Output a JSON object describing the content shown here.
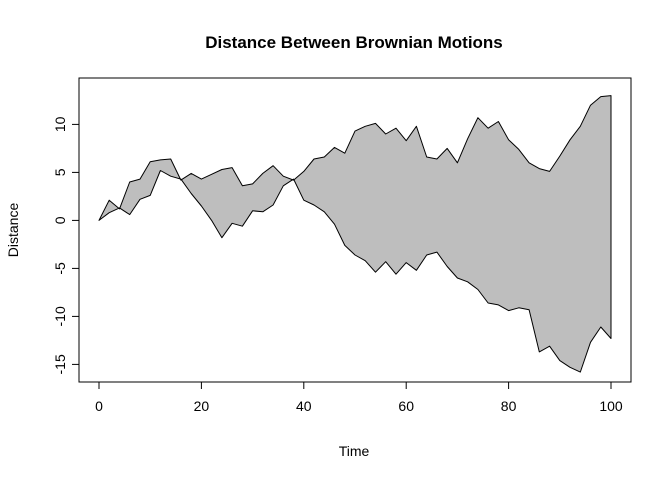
{
  "chart_data": {
    "type": "area",
    "title": "Distance Between Brownian Motions",
    "xlabel": "Time",
    "ylabel": "Distance",
    "xlim": [
      0,
      100
    ],
    "ylim": [
      -16,
      14
    ],
    "x_ticks": [
      "0",
      "20",
      "40",
      "60",
      "80",
      "100"
    ],
    "y_ticks": [
      "-15",
      "-10",
      "-5",
      "0",
      "5",
      "10"
    ],
    "grid": false,
    "fill_color": "#bebebe",
    "line_color": "#000000",
    "series": [
      {
        "x": [
          0,
          2,
          4,
          6,
          8,
          10,
          12,
          14,
          16,
          18,
          20,
          22,
          24,
          26,
          28,
          30,
          32,
          34,
          36,
          38,
          40,
          42,
          44,
          46,
          48,
          50,
          52,
          54,
          56,
          58,
          60,
          62,
          64,
          66,
          68,
          70,
          72,
          74,
          76,
          78,
          80,
          82,
          84,
          86,
          88,
          90,
          92,
          94,
          96,
          98,
          100
        ],
        "values": [
          0,
          2.1,
          1.2,
          4,
          4.3,
          6.1,
          6.3,
          6.4,
          4.2,
          4.9,
          4.3,
          4.8,
          5.3,
          5.5,
          3.6,
          3.8,
          4.9,
          5.7,
          4.6,
          4.2,
          5.1,
          6.4,
          6.6,
          7.6,
          7,
          9.3,
          9.8,
          10.1,
          9,
          9.6,
          8.3,
          9.8,
          6.6,
          6.4,
          7.5,
          6,
          8.5,
          10.7,
          9.6,
          10.3,
          8.4,
          7.4,
          6,
          5.4,
          5.1,
          6.7,
          8.4,
          9.8,
          12,
          12.9,
          13
        ]
      },
      {
        "x": [
          0,
          2,
          4,
          6,
          8,
          10,
          12,
          14,
          16,
          18,
          20,
          22,
          24,
          26,
          28,
          30,
          32,
          34,
          36,
          38,
          40,
          42,
          44,
          46,
          48,
          50,
          52,
          54,
          56,
          58,
          60,
          62,
          64,
          66,
          68,
          70,
          72,
          74,
          76,
          78,
          80,
          82,
          84,
          86,
          88,
          90,
          92,
          94,
          96,
          98,
          100
        ],
        "values": [
          0,
          0.8,
          1.3,
          0.6,
          2.2,
          2.6,
          5.2,
          4.6,
          4.3,
          2.8,
          1.5,
          0,
          -1.8,
          -0.3,
          -0.6,
          1,
          0.9,
          1.6,
          3.6,
          4.3,
          2.1,
          1.6,
          0.9,
          -0.4,
          -2.6,
          -3.6,
          -4.2,
          -5.4,
          -4.3,
          -5.6,
          -4.4,
          -5.2,
          -3.6,
          -3.3,
          -4.8,
          -6,
          -6.4,
          -7.2,
          -8.6,
          -8.8,
          -9.4,
          -9.1,
          -9.3,
          -13.7,
          -13.1,
          -14.6,
          -15.3,
          -15.8,
          -12.7,
          -11.1,
          -12.3
        ]
      }
    ]
  }
}
